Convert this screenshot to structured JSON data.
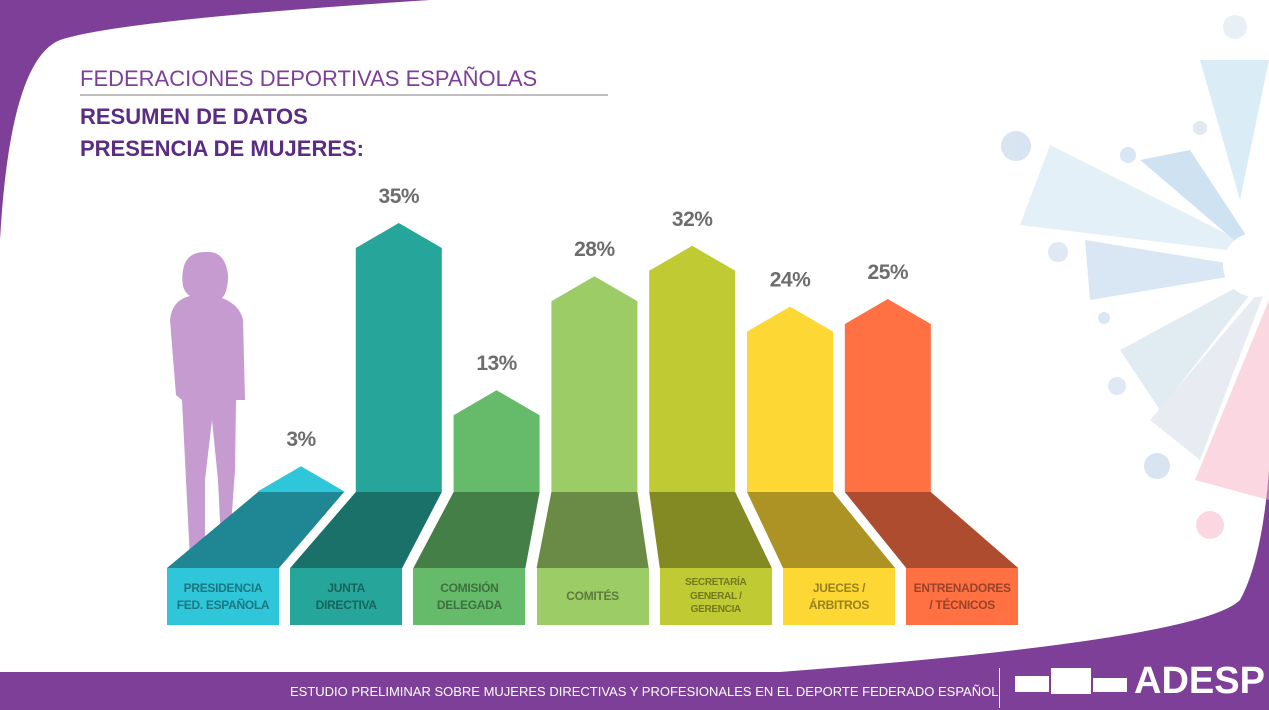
{
  "header": {
    "section": "FEDERACIONES DEPORTIVAS ESPAÑOLAS",
    "line1": "RESUMEN DE DATOS",
    "line2": "PRESENCIA DE MUJERES:"
  },
  "chart_data": {
    "type": "bar",
    "categories": [
      "PRESIDENCIA FED. ESPAÑOLA",
      "JUNTA DIRECTIVA",
      "COMISIÓN DELEGADA",
      "COMITÉS",
      "SECRETARÍA GENERAL / GERENCIA",
      "JUECES / ÁRBITROS",
      "ENTRENADORES / TÉCNICOS"
    ],
    "values": [
      3,
      35,
      13,
      28,
      32,
      24,
      25
    ],
    "value_labels": [
      "3%",
      "35%",
      "13%",
      "28%",
      "32%",
      "24%",
      "25%"
    ],
    "colors": [
      "#2ec6d8",
      "#26a69a",
      "#66bb6a",
      "#9ccc65",
      "#c0ca33",
      "#fdd835",
      "#ff7043"
    ]
  },
  "footer": {
    "text": "ESTUDIO PRELIMINAR SOBRE MUJERES DIRECTIVAS Y PROFESIONALES EN EL DEPORTE FEDERADO ESPAÑOL",
    "logo": "ADESP"
  }
}
